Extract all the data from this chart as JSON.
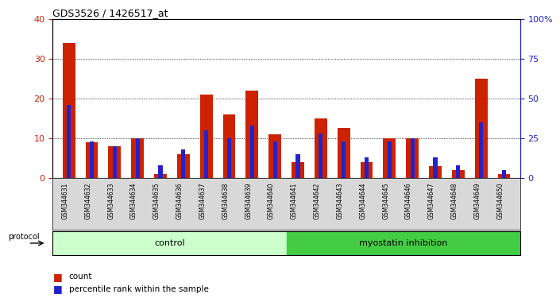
{
  "title": "GDS3526 / 1426517_at",
  "samples": [
    "GSM344631",
    "GSM344632",
    "GSM344633",
    "GSM344634",
    "GSM344635",
    "GSM344636",
    "GSM344637",
    "GSM344638",
    "GSM344639",
    "GSM344640",
    "GSM344641",
    "GSM344642",
    "GSM344643",
    "GSM344644",
    "GSM344645",
    "GSM344646",
    "GSM344647",
    "GSM344648",
    "GSM344649",
    "GSM344650"
  ],
  "count": [
    34,
    9,
    8,
    10,
    1,
    6,
    21,
    16,
    22,
    11,
    4,
    15,
    12.5,
    4,
    10,
    10,
    3,
    2,
    25,
    1
  ],
  "percentile": [
    46,
    23,
    20,
    25,
    8,
    18,
    30,
    25,
    33,
    23,
    15,
    28,
    23,
    13,
    23,
    25,
    13,
    8,
    35,
    5
  ],
  "control_count": 10,
  "myostatin_count": 10,
  "protocol_control_label": "control",
  "protocol_myostatin_label": "myostatin inhibition",
  "left_ylim": [
    0,
    40
  ],
  "right_ylim": [
    0,
    100
  ],
  "left_yticks": [
    0,
    10,
    20,
    30,
    40
  ],
  "right_yticks": [
    0,
    25,
    50,
    75,
    100
  ],
  "right_yticklabels": [
    "0",
    "25",
    "50",
    "75",
    "100%"
  ],
  "bar_color_red": "#cc2200",
  "bar_color_blue": "#2222cc",
  "control_bg": "#ccffcc",
  "myostatin_bg": "#44cc44",
  "sample_bg": "#d8d8d8",
  "bar_width": 0.55,
  "blue_bar_width": 0.18
}
